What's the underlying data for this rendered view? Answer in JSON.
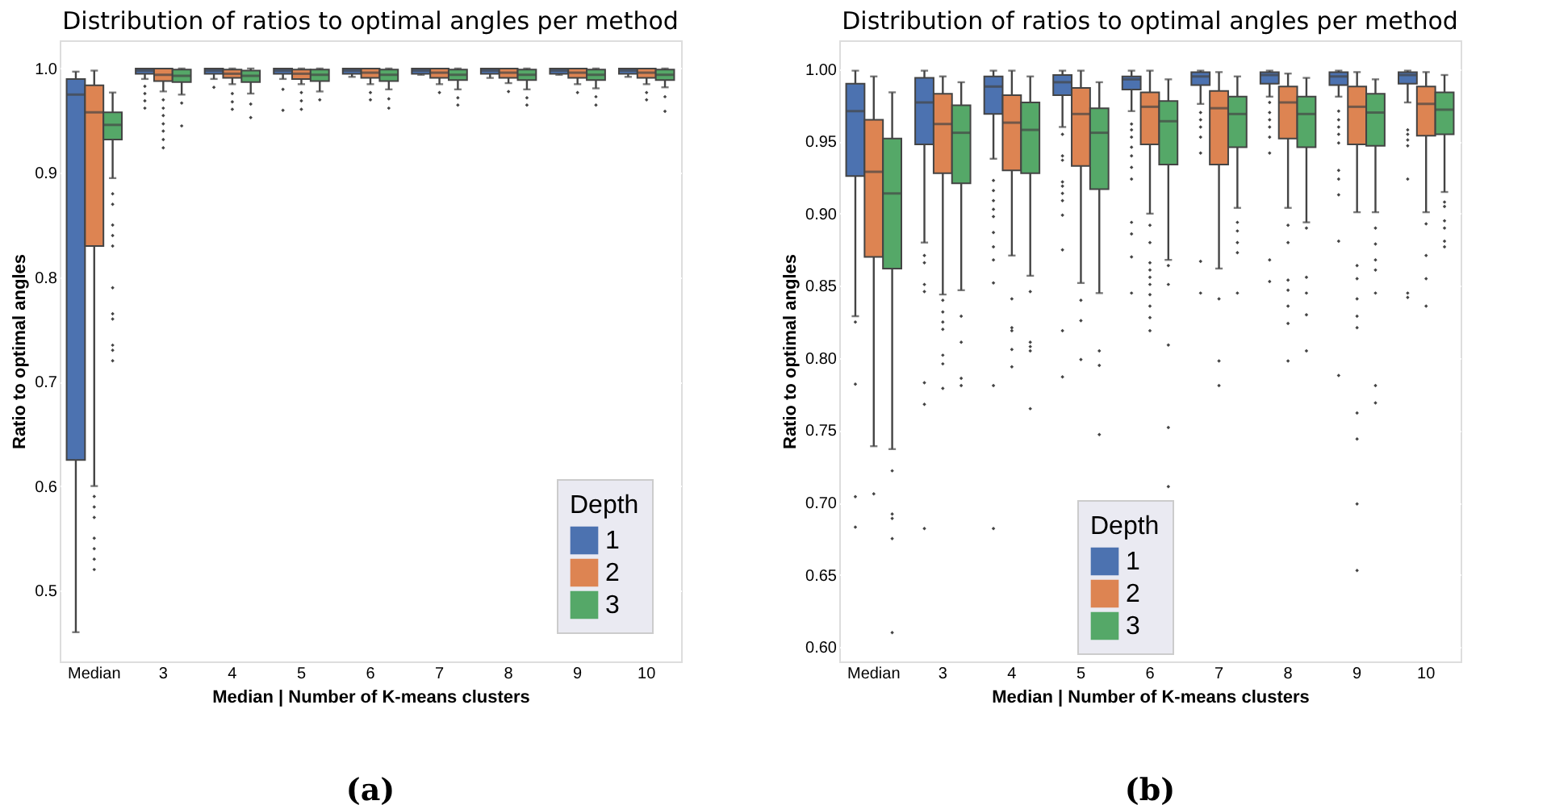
{
  "chart_data": [
    {
      "type": "box",
      "title": "Distribution of ratios to optimal angles per method",
      "xlabel": "Median | Number of K-means clusters",
      "ylabel": "Ratio to optimal angles",
      "legend_title": "Depth",
      "legend": "bottom right",
      "grid": "y",
      "annotations": [
        "(a)"
      ],
      "categories": [
        "Median",
        "3",
        "4",
        "5",
        "6",
        "7",
        "8",
        "9",
        "10"
      ],
      "ylim": [
        0.432,
        1.027
      ],
      "yticks": [
        {
          "value": 0.5,
          "label": "0.5"
        },
        {
          "value": 0.6,
          "label": "0.6"
        },
        {
          "value": 0.7,
          "label": "0.7"
        },
        {
          "value": 0.8,
          "label": "0.8"
        },
        {
          "value": 0.9,
          "label": "0.9"
        },
        {
          "value": 1,
          "label": "1.0"
        }
      ],
      "series": [
        {
          "name": "1",
          "color": "#4c72b0",
          "boxes": [
            {
              "low": 0.46,
              "q1": 0.625,
              "median": 0.975,
              "q3": 0.99,
              "high": 0.997
            },
            {
              "low": 0.99,
              "q1": 0.995,
              "median": 0.998,
              "q3": 1.0,
              "high": 1.0,
              "outliers": [
                0.983,
                0.976,
                0.969,
                0.962
              ]
            },
            {
              "low": 0.99,
              "q1": 0.995,
              "median": 0.998,
              "q3": 1.0,
              "high": 1.0,
              "outliers": [
                0.982
              ]
            },
            {
              "low": 0.99,
              "q1": 0.995,
              "median": 0.998,
              "q3": 1.0,
              "high": 1.0,
              "outliers": [
                0.98,
                0.96
              ]
            },
            {
              "low": 0.992,
              "q1": 0.995,
              "median": 0.998,
              "q3": 1.0,
              "high": 1.0
            },
            {
              "low": 0.994,
              "q1": 0.995,
              "median": 0.998,
              "q3": 1.0,
              "high": 1.0
            },
            {
              "low": 0.991,
              "q1": 0.995,
              "median": 0.998,
              "q3": 1.0,
              "high": 1.0
            },
            {
              "low": 0.994,
              "q1": 0.995,
              "median": 0.998,
              "q3": 1.0,
              "high": 1.0
            },
            {
              "low": 0.992,
              "q1": 0.995,
              "median": 0.998,
              "q3": 1.0,
              "high": 1.0
            }
          ]
        },
        {
          "name": "2",
          "color": "#dd8452",
          "boxes": [
            {
              "low": 0.6,
              "q1": 0.83,
              "median": 0.958,
              "q3": 0.984,
              "high": 0.998,
              "outliers": [
                0.59,
                0.58,
                0.57,
                0.55,
                0.54,
                0.53,
                0.52
              ]
            },
            {
              "low": 0.978,
              "q1": 0.988,
              "median": 0.994,
              "q3": 1.0,
              "high": 1.0,
              "outliers": [
                0.97,
                0.962,
                0.955,
                0.947,
                0.94,
                0.932,
                0.924
              ]
            },
            {
              "low": 0.985,
              "q1": 0.991,
              "median": 0.995,
              "q3": 0.999,
              "high": 1.0,
              "outliers": [
                0.976,
                0.968,
                0.961
              ]
            },
            {
              "low": 0.985,
              "q1": 0.99,
              "median": 0.995,
              "q3": 0.999,
              "high": 1.0,
              "outliers": [
                0.977,
                0.969,
                0.961
              ]
            },
            {
              "low": 0.985,
              "q1": 0.991,
              "median": 0.996,
              "q3": 1.0,
              "high": 1.0,
              "outliers": [
                0.977,
                0.97
              ]
            },
            {
              "low": 0.985,
              "q1": 0.991,
              "median": 0.996,
              "q3": 1.0,
              "high": 1.0,
              "outliers": [
                0.977
              ]
            },
            {
              "low": 0.986,
              "q1": 0.991,
              "median": 0.996,
              "q3": 1.0,
              "high": 1.0,
              "outliers": [
                0.978
              ]
            },
            {
              "low": 0.985,
              "q1": 0.991,
              "median": 0.996,
              "q3": 1.0,
              "high": 1.0,
              "outliers": [
                0.977
              ]
            },
            {
              "low": 0.985,
              "q1": 0.991,
              "median": 0.996,
              "q3": 1.0,
              "high": 1.0,
              "outliers": [
                0.977,
                0.97
              ]
            }
          ]
        },
        {
          "name": "3",
          "color": "#55a868",
          "boxes": [
            {
              "low": 0.895,
              "q1": 0.932,
              "median": 0.946,
              "q3": 0.958,
              "high": 0.977,
              "outliers": [
                0.88,
                0.87,
                0.85,
                0.84,
                0.83,
                0.79,
                0.765,
                0.76,
                0.735,
                0.73,
                0.72
              ]
            },
            {
              "low": 0.975,
              "q1": 0.987,
              "median": 0.993,
              "q3": 0.999,
              "high": 1.0,
              "outliers": [
                0.967,
                0.945
              ]
            },
            {
              "low": 0.976,
              "q1": 0.987,
              "median": 0.993,
              "q3": 0.998,
              "high": 1.0,
              "outliers": [
                0.966,
                0.953
              ]
            },
            {
              "low": 0.978,
              "q1": 0.988,
              "median": 0.994,
              "q3": 0.999,
              "high": 1.0,
              "outliers": [
                0.97
              ]
            },
            {
              "low": 0.98,
              "q1": 0.988,
              "median": 0.994,
              "q3": 0.999,
              "high": 1.0,
              "outliers": [
                0.971,
                0.962
              ]
            },
            {
              "low": 0.98,
              "q1": 0.989,
              "median": 0.994,
              "q3": 0.999,
              "high": 1.0,
              "outliers": [
                0.972,
                0.965
              ]
            },
            {
              "low": 0.98,
              "q1": 0.989,
              "median": 0.994,
              "q3": 0.999,
              "high": 1.0,
              "outliers": [
                0.972,
                0.965
              ]
            },
            {
              "low": 0.981,
              "q1": 0.989,
              "median": 0.994,
              "q3": 0.999,
              "high": 1.0,
              "outliers": [
                0.973,
                0.965
              ]
            },
            {
              "low": 0.982,
              "q1": 0.989,
              "median": 0.994,
              "q3": 0.999,
              "high": 1.0,
              "outliers": [
                0.973,
                0.959
              ]
            }
          ]
        }
      ]
    },
    {
      "type": "box",
      "title": "Distribution of ratios to optimal angles per method",
      "xlabel": "Median | Number of K-means clusters",
      "ylabel": "Ratio to optimal angles",
      "legend_title": "Depth",
      "legend": "bottom",
      "grid": "y",
      "annotations": [
        "(b)"
      ],
      "categories": [
        "Median",
        "3",
        "4",
        "5",
        "6",
        "7",
        "8",
        "9",
        "10"
      ],
      "ylim": [
        0.59,
        1.02
      ],
      "yticks": [
        {
          "value": 0.6,
          "label": "0.60"
        },
        {
          "value": 0.65,
          "label": "0.65"
        },
        {
          "value": 0.7,
          "label": "0.70"
        },
        {
          "value": 0.75,
          "label": "0.75"
        },
        {
          "value": 0.8,
          "label": "0.80"
        },
        {
          "value": 0.85,
          "label": "0.85"
        },
        {
          "value": 0.9,
          "label": "0.90"
        },
        {
          "value": 0.95,
          "label": "0.95"
        },
        {
          "value": 1,
          "label": "1.00"
        }
      ],
      "series": [
        {
          "name": "1",
          "color": "#4c72b0",
          "boxes": [
            {
              "low": 0.829,
              "q1": 0.926,
              "median": 0.971,
              "q3": 0.99,
              "high": 0.999,
              "outliers": [
                0.825,
                0.782,
                0.704,
                0.683
              ]
            },
            {
              "low": 0.88,
              "q1": 0.948,
              "median": 0.977,
              "q3": 0.994,
              "high": 0.999,
              "outliers": [
                0.871,
                0.866,
                0.851,
                0.846,
                0.783,
                0.768,
                0.682
              ]
            },
            {
              "low": 0.938,
              "q1": 0.969,
              "median": 0.988,
              "q3": 0.995,
              "high": 0.999,
              "outliers": [
                0.923,
                0.916,
                0.909,
                0.903,
                0.898,
                0.887,
                0.877,
                0.868,
                0.852,
                0.781,
                0.682
              ]
            },
            {
              "low": 0.96,
              "q1": 0.982,
              "median": 0.991,
              "q3": 0.996,
              "high": 0.999,
              "outliers": [
                0.955,
                0.94,
                0.937,
                0.922,
                0.919,
                0.914,
                0.909,
                0.899,
                0.875,
                0.819,
                0.787
              ]
            },
            {
              "low": 0.971,
              "q1": 0.986,
              "median": 0.993,
              "q3": 0.995,
              "high": 0.999,
              "outliers": [
                0.962,
                0.958,
                0.953,
                0.946,
                0.94,
                0.932,
                0.924,
                0.894,
                0.886,
                0.87,
                0.845
              ]
            },
            {
              "low": 0.976,
              "q1": 0.989,
              "median": 0.995,
              "q3": 0.998,
              "high": 0.999,
              "outliers": [
                0.97,
                0.965,
                0.96,
                0.953,
                0.942,
                0.867,
                0.845
              ]
            },
            {
              "low": 0.981,
              "q1": 0.99,
              "median": 0.996,
              "q3": 0.998,
              "high": 0.999,
              "outliers": [
                0.977,
                0.97,
                0.965,
                0.96,
                0.953,
                0.942,
                0.868,
                0.853
              ]
            },
            {
              "low": 0.981,
              "q1": 0.989,
              "median": 0.995,
              "q3": 0.998,
              "high": 0.999,
              "outliers": [
                0.971,
                0.965,
                0.96,
                0.955,
                0.949,
                0.93,
                0.924,
                0.913,
                0.881,
                0.788
              ]
            },
            {
              "low": 0.977,
              "q1": 0.99,
              "median": 0.996,
              "q3": 0.998,
              "high": 0.999,
              "outliers": [
                0.958,
                0.955,
                0.951,
                0.947,
                0.924,
                0.845,
                0.842
              ]
            }
          ]
        },
        {
          "name": "2",
          "color": "#dd8452",
          "boxes": [
            {
              "low": 0.739,
              "q1": 0.87,
              "median": 0.929,
              "q3": 0.965,
              "high": 0.995,
              "outliers": [
                0.706
              ]
            },
            {
              "low": 0.844,
              "q1": 0.928,
              "median": 0.962,
              "q3": 0.983,
              "high": 0.995,
              "outliers": [
                0.84,
                0.832,
                0.825,
                0.82,
                0.802,
                0.796,
                0.779
              ]
            },
            {
              "low": 0.871,
              "q1": 0.93,
              "median": 0.963,
              "q3": 0.982,
              "high": 0.999,
              "outliers": [
                0.841,
                0.821,
                0.819,
                0.806,
                0.794
              ]
            },
            {
              "low": 0.852,
              "q1": 0.933,
              "median": 0.969,
              "q3": 0.987,
              "high": 0.999,
              "outliers": [
                0.84,
                0.826,
                0.799
              ]
            },
            {
              "low": 0.9,
              "q1": 0.948,
              "median": 0.974,
              "q3": 0.984,
              "high": 0.999,
              "outliers": [
                0.892,
                0.88,
                0.866,
                0.861,
                0.856,
                0.851,
                0.844,
                0.836,
                0.828,
                0.819
              ]
            },
            {
              "low": 0.862,
              "q1": 0.934,
              "median": 0.973,
              "q3": 0.985,
              "high": 0.998,
              "outliers": [
                0.841,
                0.798,
                0.781
              ]
            },
            {
              "low": 0.904,
              "q1": 0.952,
              "median": 0.977,
              "q3": 0.988,
              "high": 0.997,
              "outliers": [
                0.892,
                0.88,
                0.854,
                0.847,
                0.836,
                0.824,
                0.798
              ]
            },
            {
              "low": 0.901,
              "q1": 0.948,
              "median": 0.974,
              "q3": 0.988,
              "high": 0.998,
              "outliers": [
                0.864,
                0.855,
                0.841,
                0.829,
                0.821,
                0.762,
                0.744,
                0.699,
                0.653
              ]
            },
            {
              "low": 0.901,
              "q1": 0.954,
              "median": 0.976,
              "q3": 0.988,
              "high": 0.998,
              "outliers": [
                0.893,
                0.871,
                0.855,
                0.836
              ]
            }
          ]
        },
        {
          "name": "3",
          "color": "#55a868",
          "boxes": [
            {
              "low": 0.737,
              "q1": 0.862,
              "median": 0.914,
              "q3": 0.952,
              "high": 0.984,
              "outliers": [
                0.722,
                0.692,
                0.689,
                0.675,
                0.61
              ]
            },
            {
              "low": 0.847,
              "q1": 0.921,
              "median": 0.956,
              "q3": 0.975,
              "high": 0.991,
              "outliers": [
                0.829,
                0.811,
                0.786,
                0.781
              ]
            },
            {
              "low": 0.857,
              "q1": 0.928,
              "median": 0.958,
              "q3": 0.977,
              "high": 0.995,
              "outliers": [
                0.846,
                0.811,
                0.808,
                0.805,
                0.765
              ]
            },
            {
              "low": 0.845,
              "q1": 0.917,
              "median": 0.956,
              "q3": 0.973,
              "high": 0.991,
              "outliers": [
                0.805,
                0.795,
                0.747
              ]
            },
            {
              "low": 0.868,
              "q1": 0.934,
              "median": 0.964,
              "q3": 0.978,
              "high": 0.993,
              "outliers": [
                0.864,
                0.851,
                0.809,
                0.752,
                0.711
              ]
            },
            {
              "low": 0.904,
              "q1": 0.946,
              "median": 0.969,
              "q3": 0.981,
              "high": 0.995,
              "outliers": [
                0.894,
                0.888,
                0.88,
                0.873,
                0.845
              ]
            },
            {
              "low": 0.894,
              "q1": 0.946,
              "median": 0.969,
              "q3": 0.981,
              "high": 0.994,
              "outliers": [
                0.89,
                0.856,
                0.845,
                0.83,
                0.805
              ]
            },
            {
              "low": 0.901,
              "q1": 0.947,
              "median": 0.97,
              "q3": 0.983,
              "high": 0.993,
              "outliers": [
                0.89,
                0.879,
                0.868,
                0.861,
                0.845,
                0.781,
                0.769
              ]
            },
            {
              "low": 0.915,
              "q1": 0.955,
              "median": 0.972,
              "q3": 0.984,
              "high": 0.996,
              "outliers": [
                0.908,
                0.905,
                0.895,
                0.89,
                0.881,
                0.877
              ]
            }
          ]
        }
      ]
    }
  ]
}
